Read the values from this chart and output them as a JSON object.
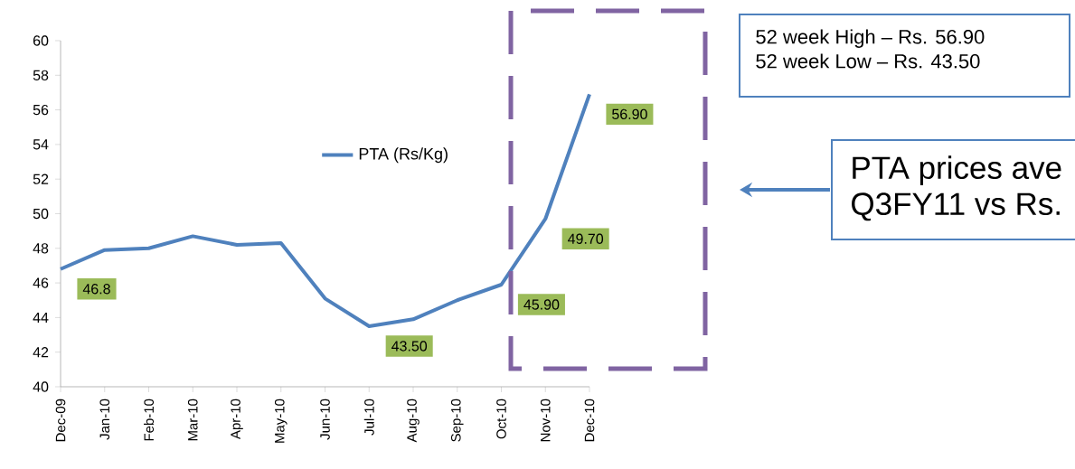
{
  "chart_data": {
    "type": "line",
    "categories": [
      "Dec-09",
      "Jan-10",
      "Feb-10",
      "Mar-10",
      "Apr-10",
      "May-10",
      "Jun-10",
      "Jul-10",
      "Aug-10",
      "Sep-10",
      "Oct-10",
      "Nov-10",
      "Dec-10"
    ],
    "series": [
      {
        "name": "PTA (Rs/Kg)",
        "color": "#4f81bd",
        "values": [
          46.8,
          47.9,
          48.0,
          48.7,
          48.2,
          48.3,
          45.1,
          43.5,
          43.9,
          45.0,
          45.9,
          49.7,
          56.9
        ],
        "value_labels": [
          "46.8",
          null,
          null,
          null,
          null,
          null,
          null,
          "43.50",
          null,
          null,
          "45.90",
          "49.70",
          "56.90"
        ]
      }
    ],
    "ylim": [
      40,
      60
    ],
    "yticks": [
      40,
      42,
      44,
      46,
      48,
      50,
      52,
      54,
      56,
      58,
      60
    ],
    "legend": "top",
    "annotations": [
      "52 week High – Rs. 56.90",
      "52 week Low – Rs. 43.50",
      "PTA prices ave",
      "Q3FY11 vs Rs."
    ]
  }
}
